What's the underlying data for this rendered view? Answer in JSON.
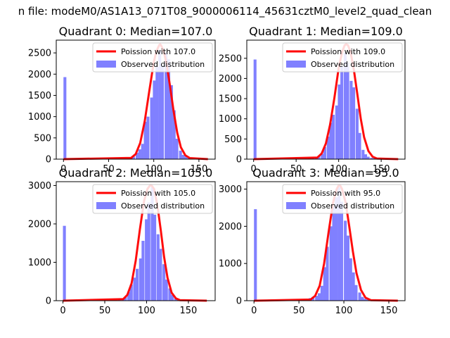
{
  "suptitle": "n file: modeM0/AS1A13_071T08_9000006114_45631cztM0_level2_quad_clean",
  "legend": {
    "fit_label_prefix": "Poission with",
    "hist_label": "Observed distribution"
  },
  "colors": {
    "fit_line": "#ff0000",
    "hist_fill": "#8080ff",
    "axes": "#000000"
  },
  "chart_data": [
    {
      "type": "bar",
      "title": "Quadrant 0: Median=107.0",
      "median": 107.0,
      "fit_label": "Poission with 107.0",
      "xlabel": "",
      "ylabel": "",
      "xlim": [
        -8,
        168
      ],
      "ylim": [
        0,
        2800
      ],
      "xticks": [
        0,
        50,
        100,
        150
      ],
      "yticks": [
        0,
        500,
        1000,
        1500,
        2000,
        2500
      ],
      "legend_position": "upper right",
      "bin_width": 3.2,
      "hist": {
        "x": [
          0,
          70,
          73,
          76,
          80,
          83,
          86,
          89,
          92,
          96,
          99,
          102,
          105,
          108,
          112,
          115,
          118,
          121,
          124,
          128,
          131,
          134,
          137,
          140,
          144
        ],
        "values": [
          1930,
          10,
          30,
          60,
          150,
          230,
          360,
          880,
          1000,
          1450,
          1850,
          2170,
          2560,
          2200,
          2520,
          2350,
          1740,
          1150,
          480,
          200,
          100,
          60,
          25,
          10,
          5
        ]
      },
      "fit": {
        "x": [
          0,
          75,
          80,
          85,
          90,
          95,
          100,
          103,
          106,
          107,
          108,
          111,
          114,
          118,
          122,
          126,
          130,
          135,
          140,
          160
        ],
        "y": [
          0,
          30,
          120,
          380,
          890,
          1600,
          2280,
          2540,
          2680,
          2700,
          2680,
          2540,
          2260,
          1720,
          1130,
          620,
          280,
          90,
          25,
          0
        ]
      }
    },
    {
      "type": "bar",
      "title": "Quadrant 1: Median=109.0",
      "median": 109.0,
      "fit_label": "Poission with 109.0",
      "xlabel": "",
      "ylabel": "",
      "xlim": [
        -8,
        178
      ],
      "ylim": [
        0,
        2950
      ],
      "xticks": [
        0,
        50,
        100,
        150
      ],
      "yticks": [
        0,
        500,
        1000,
        1500,
        2000,
        2500
      ],
      "legend_position": "upper right",
      "bin_width": 3.4,
      "hist": {
        "x": [
          0,
          60,
          64,
          68,
          72,
          75,
          79,
          82,
          86,
          89,
          92,
          96,
          99,
          102,
          106,
          109,
          113,
          116,
          120,
          123,
          127,
          130,
          133,
          137,
          140,
          144,
          147
        ],
        "values": [
          2470,
          15,
          30,
          45,
          60,
          80,
          130,
          300,
          560,
          900,
          1100,
          1330,
          1850,
          2300,
          2640,
          2400,
          1940,
          1780,
          1250,
          650,
          230,
          120,
          60,
          30,
          20,
          10,
          5
        ]
      },
      "fit": {
        "x": [
          0,
          75,
          80,
          85,
          90,
          95,
          100,
          104,
          107,
          109,
          111,
          114,
          118,
          122,
          126,
          130,
          135,
          140,
          145,
          170
        ],
        "y": [
          0,
          40,
          140,
          390,
          860,
          1520,
          2250,
          2650,
          2820,
          2850,
          2820,
          2650,
          2200,
          1600,
          1000,
          540,
          200,
          60,
          15,
          0
        ]
      }
    },
    {
      "type": "bar",
      "title": "Quadrant 2: Median=105.0",
      "median": 105.0,
      "fit_label": "Poission with 105.0",
      "xlabel": "",
      "ylabel": "",
      "xlim": [
        -8,
        182
      ],
      "ylim": [
        0,
        3100
      ],
      "xticks": [
        0,
        50,
        100,
        150
      ],
      "yticks": [
        0,
        1000,
        2000,
        3000
      ],
      "legend_position": "upper right",
      "bin_width": 3.5,
      "hist": {
        "x": [
          0,
          66,
          70,
          73,
          77,
          80,
          84,
          87,
          91,
          94,
          98,
          101,
          105,
          108,
          112,
          115,
          119,
          122,
          126,
          129,
          133,
          136,
          140
        ],
        "values": [
          1950,
          40,
          60,
          90,
          220,
          420,
          600,
          830,
          1100,
          1560,
          2120,
          2560,
          2960,
          2240,
          1730,
          1350,
          950,
          550,
          320,
          150,
          60,
          20,
          10
        ]
      },
      "fit": {
        "x": [
          0,
          72,
          77,
          82,
          87,
          92,
          97,
          101,
          104,
          105,
          106,
          109,
          113,
          117,
          121,
          125,
          130,
          135,
          140,
          172
        ],
        "y": [
          0,
          40,
          150,
          450,
          1040,
          1850,
          2600,
          2910,
          3000,
          3010,
          3000,
          2910,
          2480,
          1830,
          1140,
          600,
          210,
          60,
          15,
          0
        ]
      }
    },
    {
      "type": "bar",
      "title": "Quadrant 3: Median=95.0",
      "median": 95.0,
      "fit_label": "Poission with 95.0",
      "xlabel": "",
      "ylabel": "",
      "xlim": [
        -8,
        168
      ],
      "ylim": [
        0,
        3200
      ],
      "xticks": [
        0,
        50,
        100,
        150
      ],
      "yticks": [
        0,
        1000,
        2000,
        3000
      ],
      "legend_position": "upper right",
      "bin_width": 3.2,
      "hist": {
        "x": [
          0,
          52,
          55,
          58,
          61,
          64,
          68,
          71,
          74,
          77,
          80,
          84,
          87,
          90,
          93,
          96,
          100,
          103,
          106,
          109,
          112,
          116,
          119,
          122,
          125,
          128
        ],
        "values": [
          2460,
          20,
          30,
          50,
          70,
          100,
          130,
          200,
          400,
          900,
          1450,
          2000,
          2530,
          2780,
          3050,
          2660,
          2150,
          1750,
          1140,
          760,
          420,
          220,
          100,
          50,
          30,
          10
        ]
      },
      "fit": {
        "x": [
          0,
          63,
          68,
          73,
          78,
          83,
          88,
          92,
          94,
          95,
          96,
          98,
          102,
          106,
          110,
          114,
          119,
          124,
          130,
          160
        ],
        "y": [
          0,
          30,
          130,
          400,
          990,
          1840,
          2640,
          3000,
          3090,
          3100,
          3090,
          3000,
          2640,
          2000,
          1320,
          740,
          290,
          80,
          15,
          0
        ]
      }
    }
  ]
}
